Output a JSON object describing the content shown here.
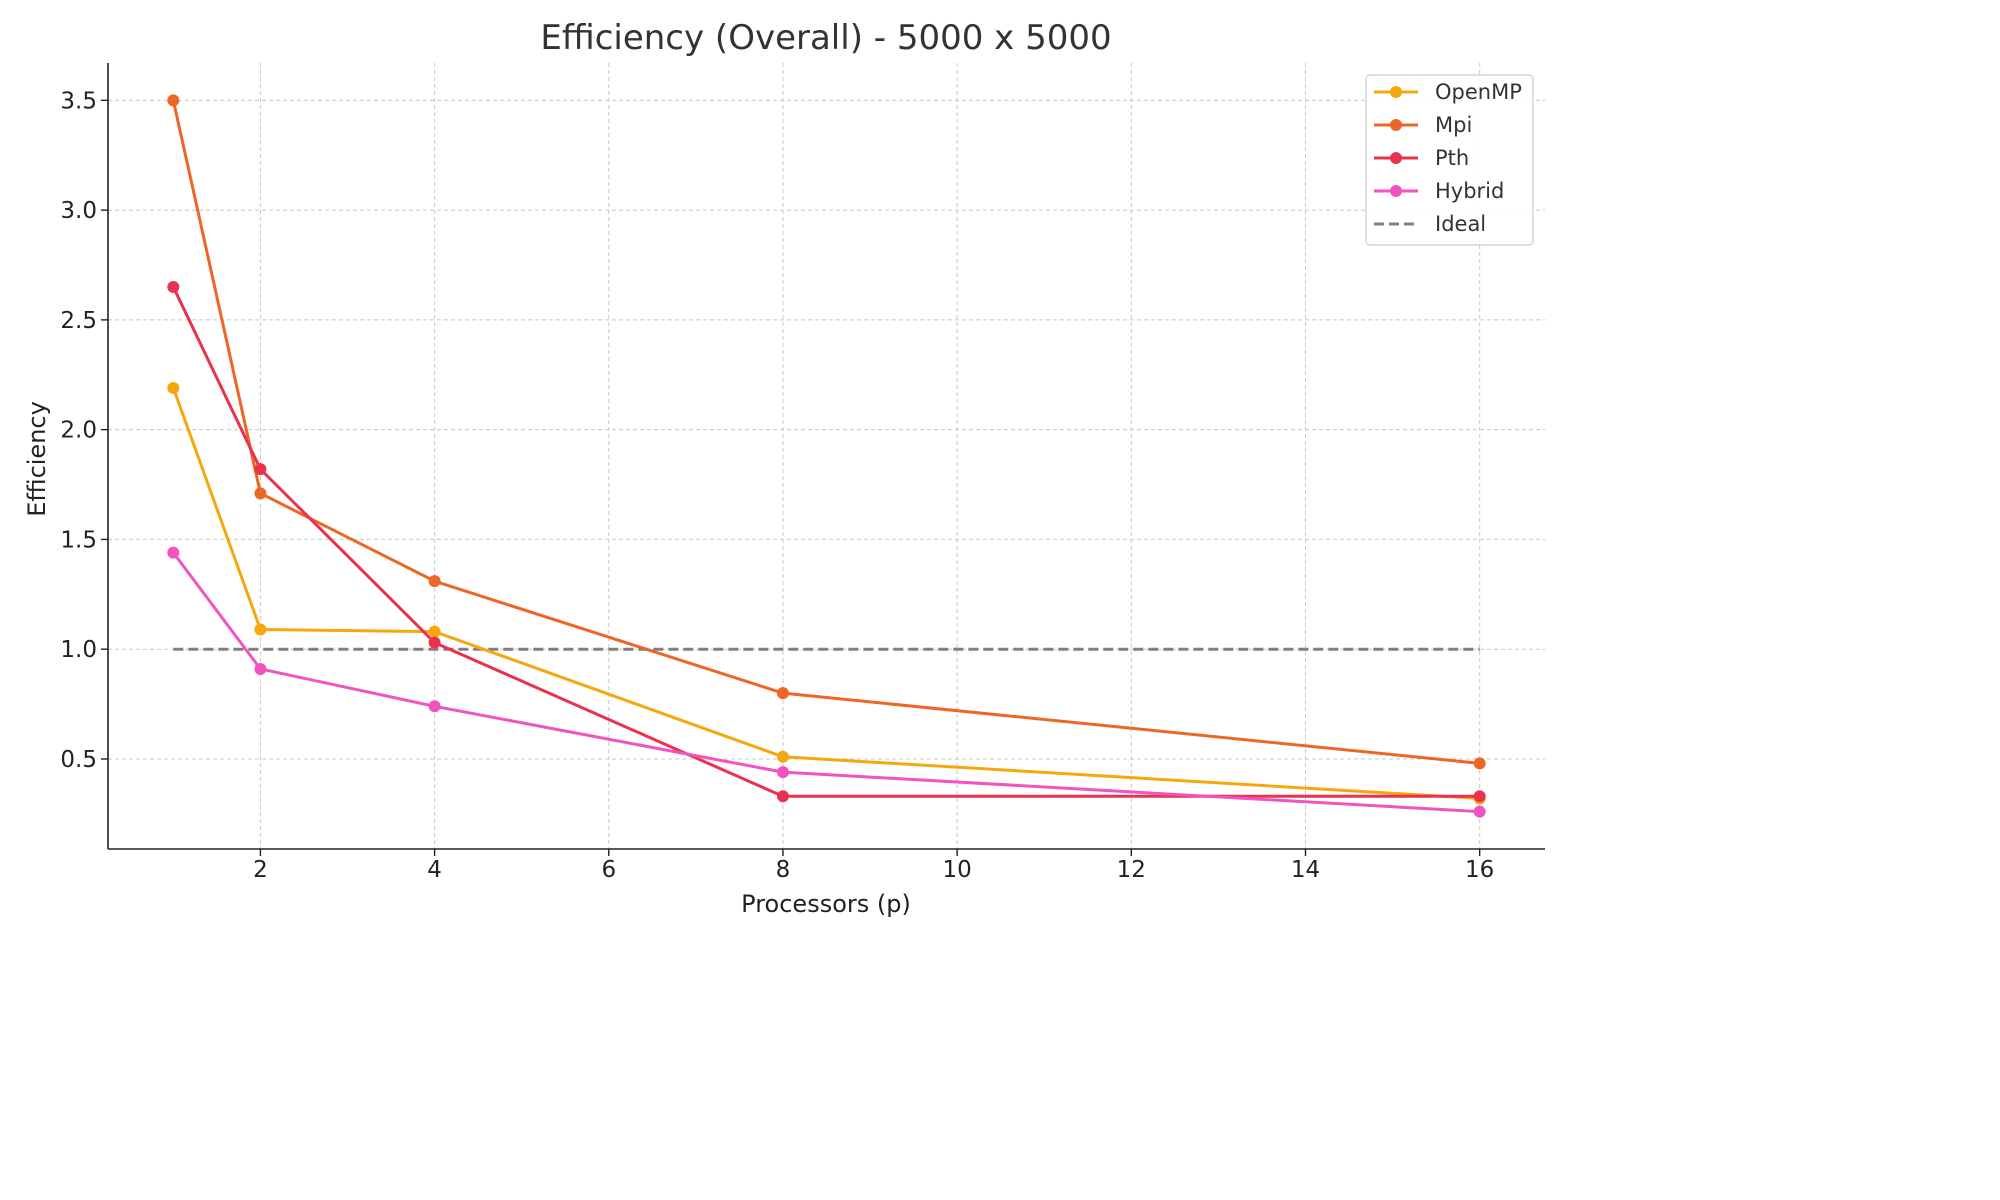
{
  "chart_data": {
    "type": "line",
    "title": "Efficiency (Overall) - 5000 x 5000",
    "xlabel": "Processors (p)",
    "ylabel": "Efficiency",
    "xlim": [
      0.25,
      16.75
    ],
    "ylim": [
      0.09,
      3.67
    ],
    "xticks": [
      2,
      4,
      6,
      8,
      10,
      12,
      14,
      16
    ],
    "yticks": [
      0.5,
      1.0,
      1.5,
      2.0,
      2.5,
      3.0,
      3.5
    ],
    "ytick_labels": [
      "0.5",
      "1.0",
      "1.5",
      "2.0",
      "2.5",
      "3.0",
      "3.5"
    ],
    "grid": true,
    "legend_position": "top-right",
    "x": [
      1,
      2,
      4,
      8,
      16
    ],
    "series": [
      {
        "name": "OpenMP",
        "color": "#f5a70e",
        "values": [
          2.19,
          1.09,
          1.08,
          0.51,
          0.32
        ]
      },
      {
        "name": "Mpi",
        "color": "#ee6626",
        "values": [
          3.5,
          1.71,
          1.31,
          0.8,
          0.48
        ]
      },
      {
        "name": "Pth",
        "color": "#e8324e",
        "values": [
          2.65,
          1.82,
          1.03,
          0.33,
          0.33
        ]
      },
      {
        "name": "Hybrid",
        "color": "#f153c1",
        "values": [
          1.44,
          0.91,
          0.74,
          0.44,
          0.26
        ]
      }
    ],
    "reference": {
      "name": "Ideal",
      "color": "#808080",
      "value": 1.0,
      "x_range": [
        1,
        16
      ]
    }
  }
}
